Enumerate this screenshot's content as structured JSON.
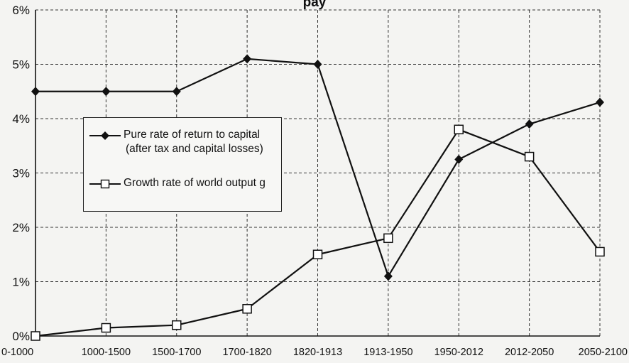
{
  "chart_data": {
    "type": "line",
    "title": "",
    "title_fragment": "pay",
    "xlabel": "",
    "ylabel": "",
    "ylim": [
      0,
      6
    ],
    "yticks": [
      "0%",
      "1%",
      "2%",
      "3%",
      "4%",
      "5%",
      "6%"
    ],
    "grid": true,
    "grid_style": "dashed",
    "legend_position": "upper-left",
    "categories": [
      "0-1000",
      "1000-1500",
      "1500-1700",
      "1700-1820",
      "1820-1913",
      "1913-1950",
      "1950-2012",
      "2012-2050",
      "2050-2100"
    ],
    "series": [
      {
        "name": "Pure rate of return to capital",
        "name_line2": "(after tax and capital losses)",
        "marker": "filled-diamond",
        "color": "#111111",
        "values": [
          4.5,
          4.5,
          4.5,
          5.1,
          5.0,
          1.1,
          3.25,
          3.9,
          4.3
        ]
      },
      {
        "name": "Growth rate of world output g",
        "marker": "open-square",
        "color": "#111111",
        "values": [
          0.0,
          0.15,
          0.2,
          0.5,
          1.5,
          1.8,
          3.8,
          3.3,
          1.55
        ]
      }
    ]
  }
}
